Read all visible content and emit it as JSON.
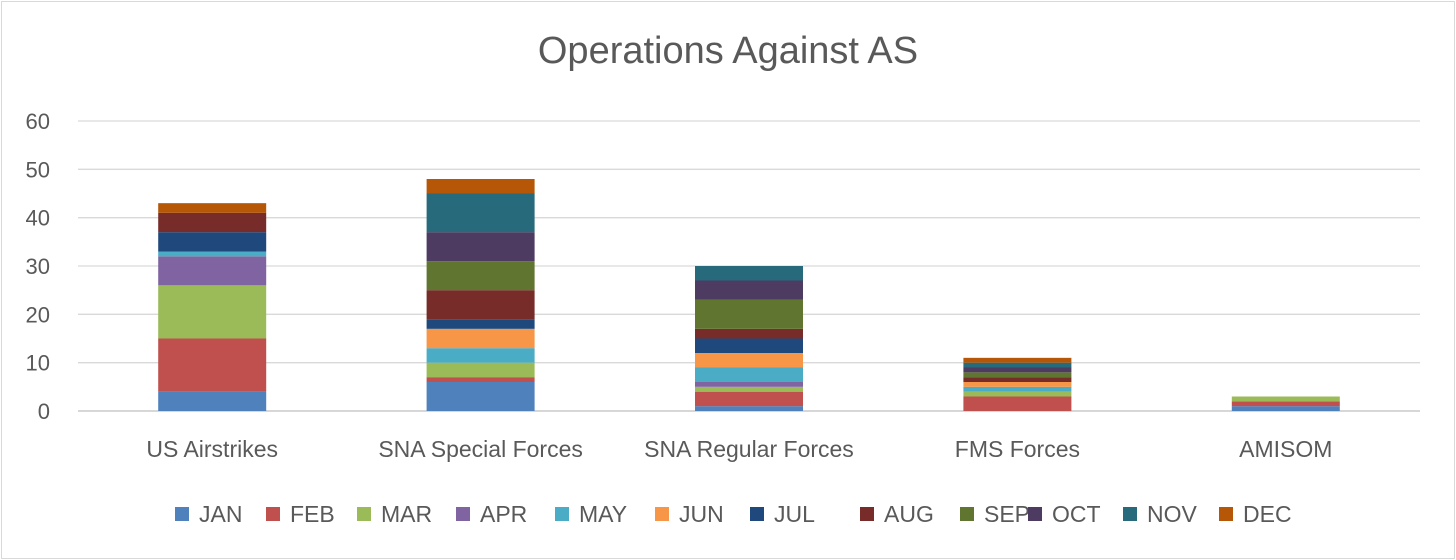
{
  "chart_data": {
    "type": "bar",
    "stacked": true,
    "title": "Operations Against AS",
    "xlabel": "",
    "ylabel": "",
    "ylim": [
      0,
      60
    ],
    "yticks": [
      0,
      10,
      20,
      30,
      40,
      50,
      60
    ],
    "grid": true,
    "legend": "bottom",
    "categories": [
      "US Airstrikes",
      "SNA Special Forces",
      "SNA Regular Forces",
      "FMS Forces",
      "AMISOM"
    ],
    "series": [
      {
        "name": "JAN",
        "color": "#4F81BD",
        "values": [
          4,
          6,
          1,
          0,
          1
        ]
      },
      {
        "name": "FEB",
        "color": "#C0504D",
        "values": [
          11,
          1,
          3,
          3,
          1
        ]
      },
      {
        "name": "MAR",
        "color": "#9BBB59",
        "values": [
          11,
          3,
          1,
          1,
          1
        ]
      },
      {
        "name": "APR",
        "color": "#8064A2",
        "values": [
          6,
          0,
          1,
          0,
          0
        ]
      },
      {
        "name": "MAY",
        "color": "#4BACC6",
        "values": [
          1,
          3,
          3,
          1,
          0
        ]
      },
      {
        "name": "JUN",
        "color": "#F79646",
        "values": [
          0,
          4,
          3,
          1,
          0
        ]
      },
      {
        "name": "JUL",
        "color": "#1F497D",
        "values": [
          4,
          2,
          3,
          0,
          0
        ]
      },
      {
        "name": "AUG",
        "color": "#772C2A",
        "values": [
          4,
          6,
          2,
          1,
          0
        ]
      },
      {
        "name": "SEP",
        "color": "#5F7530",
        "values": [
          0,
          6,
          6,
          1,
          0
        ]
      },
      {
        "name": "OCT",
        "color": "#4D3B62",
        "values": [
          0,
          6,
          4,
          1,
          0
        ]
      },
      {
        "name": "NOV",
        "color": "#276A7C",
        "values": [
          0,
          8,
          3,
          1,
          0
        ]
      },
      {
        "name": "DEC",
        "color": "#B65708",
        "values": [
          2,
          3,
          0,
          1,
          0
        ]
      }
    ]
  }
}
